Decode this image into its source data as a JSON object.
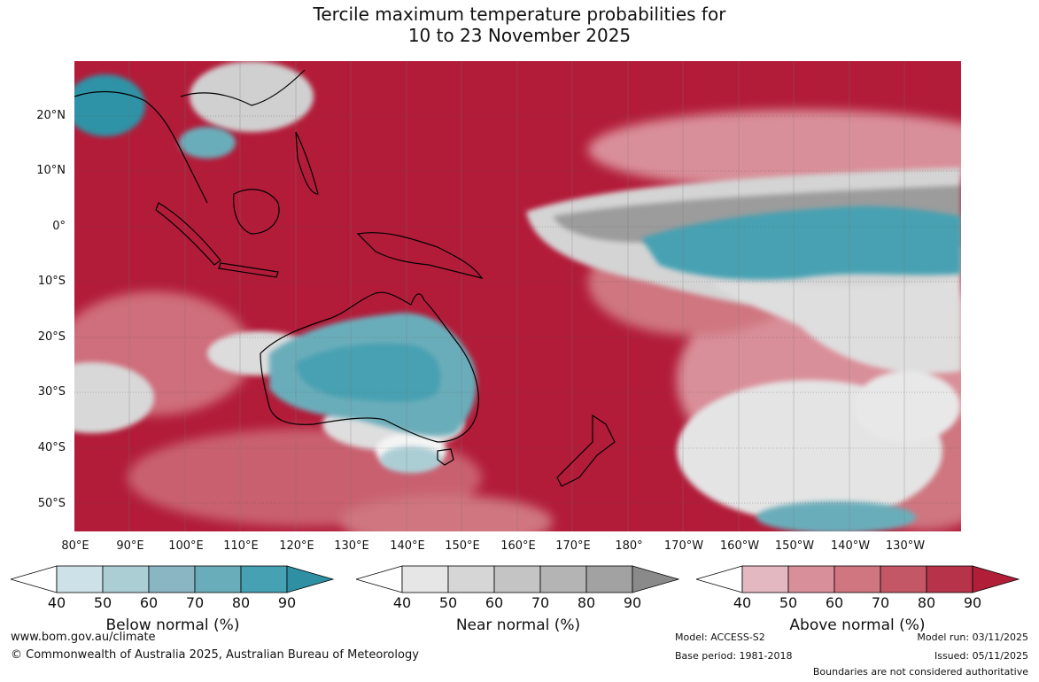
{
  "title": {
    "line1": "Tercile maximum temperature probabilities for",
    "line2": "10 to 23 November 2025"
  },
  "lat_labels": [
    "20°N",
    "10°N",
    "0°",
    "10°S",
    "20°S",
    "30°S",
    "40°S",
    "50°S"
  ],
  "lon_labels": [
    "80°E",
    "90°E",
    "100°E",
    "110°E",
    "120°E",
    "130°E",
    "140°E",
    "150°E",
    "160°E",
    "170°E",
    "180°",
    "170°W",
    "160°W",
    "150°W",
    "140°W",
    "130°W"
  ],
  "colorbars": [
    {
      "title": "Below normal (%)",
      "ticks": [
        "40",
        "50",
        "60",
        "70",
        "80",
        "90"
      ],
      "colors": [
        "#ffffff",
        "#cde2e8",
        "#abcdd4",
        "#8ab6c4",
        "#6aadba",
        "#46a1b2",
        "#2f8fa3"
      ]
    },
    {
      "title": "Near normal (%)",
      "ticks": [
        "40",
        "50",
        "60",
        "70",
        "80",
        "90"
      ],
      "colors": [
        "#ffffff",
        "#e6e6e6",
        "#d6d6d6",
        "#c4c4c4",
        "#b4b4b4",
        "#a2a2a2",
        "#8a8a8a"
      ]
    },
    {
      "title": "Above normal (%)",
      "ticks": [
        "40",
        "50",
        "60",
        "70",
        "80",
        "90"
      ],
      "colors": [
        "#ffffff",
        "#e3b8c0",
        "#d98f99",
        "#cf7680",
        "#c45766",
        "#b7334a",
        "#b01e38"
      ]
    }
  ],
  "footer": {
    "website": "www.bom.gov.au/climate",
    "copyright": "© Commonwealth of Australia 2025, Australian Bureau of Meteorology",
    "model": "Model: ACCESS-S2",
    "base_period": "Base period: 1981-2018",
    "model_run": "Model run: 03/11/2025",
    "issued": "Issued: 05/11/2025",
    "disclaimer": "Boundaries are not considered authoritative"
  }
}
